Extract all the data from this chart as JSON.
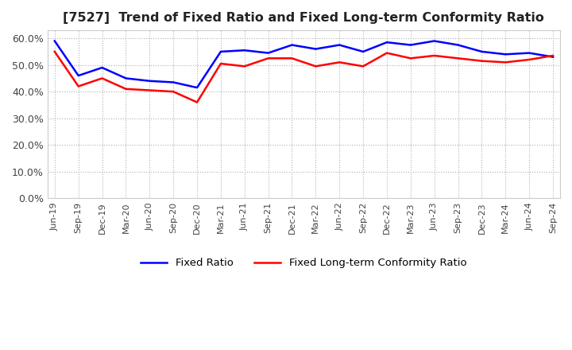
{
  "title": "[7527]  Trend of Fixed Ratio and Fixed Long-term Conformity Ratio",
  "x_labels": [
    "Jun-19",
    "Sep-19",
    "Dec-19",
    "Mar-20",
    "Jun-20",
    "Sep-20",
    "Dec-20",
    "Mar-21",
    "Jun-21",
    "Sep-21",
    "Dec-21",
    "Mar-22",
    "Jun-22",
    "Sep-22",
    "Dec-22",
    "Mar-23",
    "Jun-23",
    "Sep-23",
    "Dec-23",
    "Mar-24",
    "Jun-24",
    "Sep-24"
  ],
  "fixed_ratio": [
    59.0,
    46.0,
    49.0,
    45.0,
    44.0,
    43.5,
    41.5,
    55.0,
    55.5,
    54.5,
    57.5,
    56.0,
    57.5,
    55.0,
    58.5,
    57.5,
    59.0,
    57.5,
    55.0,
    54.0,
    54.5,
    53.0
  ],
  "fixed_lt_ratio": [
    55.0,
    42.0,
    45.0,
    41.0,
    40.5,
    40.0,
    36.0,
    50.5,
    49.5,
    52.5,
    52.5,
    49.5,
    51.0,
    49.5,
    54.5,
    52.5,
    53.5,
    52.5,
    51.5,
    51.0,
    52.0,
    53.5
  ],
  "fixed_ratio_color": "#0000ff",
  "fixed_lt_ratio_color": "#ff0000",
  "ylim": [
    0,
    63
  ],
  "yticks": [
    0,
    10,
    20,
    30,
    40,
    50,
    60
  ],
  "grid_color": "#b0b0b0",
  "legend_labels": [
    "Fixed Ratio",
    "Fixed Long-term Conformity Ratio"
  ]
}
